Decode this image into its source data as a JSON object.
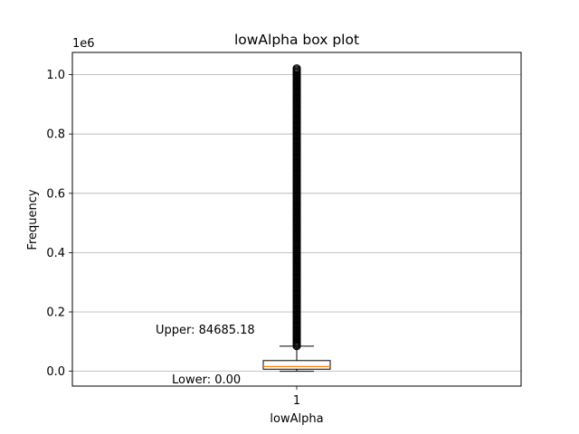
{
  "chart_data": {
    "type": "box",
    "title": "lowAlpha box plot",
    "xlabel": "lowAlpha",
    "ylabel": "Frequency",
    "y_offset_label": "1e6",
    "categories": [
      "1"
    ],
    "y_ticks": [
      0.0,
      0.2,
      0.4,
      0.6,
      0.8,
      1.0
    ],
    "y_tick_labels": [
      "0.0",
      "0.2",
      "0.4",
      "0.6",
      "0.8",
      "1.0"
    ],
    "ylim": [
      -0.05,
      1.075
    ],
    "grid": "y",
    "box": {
      "whisker_low": 0.0,
      "q1": 0.007,
      "median": 0.016,
      "q3": 0.036,
      "whisker_high": 0.0847,
      "outliers_from": 0.0847,
      "outliers_to": 1.022
    },
    "annotations": [
      {
        "text": "Upper: 84685.18",
        "y": 0.0847
      },
      {
        "text": "Lower: 0.00",
        "y": 0.0
      }
    ],
    "colors": {
      "box": "#000000",
      "median": "#ff7f0e",
      "grid": "#b0b0b0",
      "outlier": "#000000"
    }
  }
}
